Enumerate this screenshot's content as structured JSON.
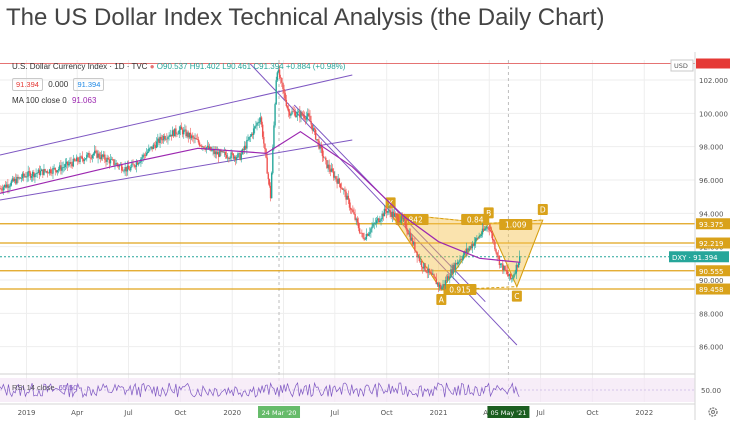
{
  "page": {
    "title": "The US Dollar Index Technical Analysis (the Daily Chart)"
  },
  "header": {
    "symbol": "U.S. Dollar Currency Index · 1D · TVC",
    "ohlc": {
      "o": "O90.537",
      "h": "H91.402",
      "l": "L90.461",
      "c": "C91.394",
      "chg": "+0.884 (+0.98%)"
    },
    "pill_price_red": "91.394",
    "pill_zero": "0.000",
    "pill_price_blue": "91.394",
    "ma_label": "MA 100 close 0",
    "ma_value": "91.063",
    "currency": "USD"
  },
  "rsi": {
    "label": "RSI 14 close",
    "value": "65.50",
    "axis_tick": "50.00"
  },
  "colors": {
    "candle_up": "#26a69a",
    "candle_down": "#ef5350",
    "ma": "#9c27b0",
    "channel": "#7e57c2",
    "pattern": "#f5c14b",
    "levels": "#e0a31a",
    "price_tag": "#26a69a"
  },
  "chart_data": {
    "type": "line",
    "title": "U.S. Dollar Currency Index · 1D · TVC",
    "xlim": [
      "2018-11-15",
      "2022-04-01"
    ],
    "ylim": [
      84.6,
      103.2
    ],
    "x_tick_labels": [
      "2019",
      "Apr",
      "Jul",
      "Oct",
      "2020",
      "Apr",
      "Jul",
      "Oct",
      "2021",
      "Apr",
      "Jul",
      "Oct",
      "2022"
    ],
    "x_ticks": [
      "2019-01-01",
      "2019-04-01",
      "2019-07-01",
      "2019-10-01",
      "2020-01-01",
      "2020-04-01",
      "2020-07-01",
      "2020-10-01",
      "2021-01-01",
      "2021-04-01",
      "2021-07-01",
      "2021-10-01",
      "2022-01-01"
    ],
    "highlighted_x_labels": [
      {
        "date": "2020-03-24",
        "label": "24 Mar '20"
      },
      {
        "date": "2021-05-05",
        "label": "05 May '21"
      }
    ],
    "y_ticks": [
      86,
      88,
      90,
      92,
      94,
      96,
      98,
      100,
      102
    ],
    "y_tick_labels": [
      "86.000",
      "88.000",
      "90.000",
      "92.000",
      "94.000",
      "96.000",
      "98.000",
      "100.000",
      "102.000"
    ],
    "series": [
      {
        "kind": "price",
        "x": [
          "2018-11-15",
          "2019-01-01",
          "2019-03-01",
          "2019-05-01",
          "2019-07-01",
          "2019-09-01",
          "2019-10-01",
          "2019-12-01",
          "2020-01-15",
          "2020-02-20",
          "2020-03-09",
          "2020-03-20",
          "2020-04-10",
          "2020-05-15",
          "2020-06-15",
          "2020-07-15",
          "2020-08-20",
          "2020-09-30",
          "2020-11-01",
          "2020-12-01",
          "2021-01-06",
          "2021-02-01",
          "2021-03-01",
          "2021-03-31",
          "2021-04-20",
          "2021-05-10",
          "2021-05-26"
        ],
        "y": [
          95.5,
          96.3,
          96.7,
          97.6,
          96.6,
          98.6,
          99.0,
          97.6,
          97.4,
          99.8,
          95.0,
          102.8,
          100.1,
          99.8,
          97.0,
          95.5,
          92.5,
          94.2,
          93.5,
          91.0,
          89.5,
          91.0,
          92.1,
          93.3,
          91.0,
          90.0,
          91.39
        ]
      },
      {
        "kind": "ma",
        "name": "MA 100 close 0",
        "x": [
          "2018-11-15",
          "2019-06-01",
          "2019-11-01",
          "2020-03-01",
          "2020-05-01",
          "2020-08-01",
          "2020-11-01",
          "2021-01-01",
          "2021-03-15",
          "2021-05-26"
        ],
        "y": [
          95.2,
          96.8,
          97.9,
          97.6,
          98.9,
          96.8,
          93.8,
          92.3,
          91.3,
          91.06
        ]
      }
    ],
    "price_levels": [
      {
        "value": 93.375,
        "label": "93.375"
      },
      {
        "value": 92.219,
        "label": "92.219"
      },
      {
        "value": 90.555,
        "label": "90.555"
      },
      {
        "value": 89.458,
        "label": "89.458"
      }
    ],
    "last_price": {
      "value": 91.394,
      "label": "DXY · 91.394"
    },
    "top_marker": {
      "value": 102.99,
      "label": ""
    },
    "pattern": {
      "name": "XABCD harmonic",
      "points": [
        {
          "label": "X",
          "date": "2020-10-08",
          "value": 94.0
        },
        {
          "label": "A",
          "date": "2021-01-06",
          "value": 89.4
        },
        {
          "label": "B",
          "date": "2021-03-31",
          "value": 93.4
        },
        {
          "label": "C",
          "date": "2021-05-20",
          "value": 89.6
        },
        {
          "label": "D",
          "date": "2021-07-05",
          "value": 93.6
        }
      ],
      "ratios": [
        {
          "label": "0.842",
          "date": "2020-11-15",
          "value": 93.6
        },
        {
          "label": "0.84",
          "date": "2021-03-07",
          "value": 93.6
        },
        {
          "label": "1.009",
          "date": "2021-05-18",
          "value": 93.3
        },
        {
          "label": "0.915",
          "date": "2021-02-08",
          "value": 89.4
        }
      ]
    },
    "trend_lines": [
      {
        "x": [
          "2018-11-15",
          "2020-08-01"
        ],
        "y": [
          97.5,
          102.3
        ]
      },
      {
        "x": [
          "2018-11-15",
          "2020-08-01"
        ],
        "y": [
          94.8,
          98.4
        ]
      },
      {
        "x": [
          "2020-02-01",
          "2021-05-20"
        ],
        "y": [
          103.0,
          86.1
        ]
      },
      {
        "x": [
          "2020-04-20",
          "2021-03-25"
        ],
        "y": [
          100.5,
          88.7
        ]
      }
    ],
    "rsi": {
      "label": "RSI 14 close",
      "value": 65.5
    },
    "grid": true
  }
}
